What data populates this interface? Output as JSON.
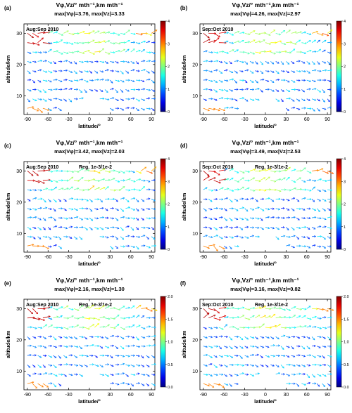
{
  "figure": {
    "panels": [
      {
        "letter": "(a)",
        "period": "Aug:Sep 2010",
        "reg": "",
        "vmax": 3.76,
        "zmax": 3.33,
        "cmax": 4,
        "cticks": [
          "0",
          "1",
          "2",
          "3",
          "4"
        ],
        "title1": "Vφ,Vz/° mth⁻¹,km mth⁻¹",
        "title2": "max|Vφ|=3.76, max|Vz|=3.33"
      },
      {
        "letter": "(b)",
        "period": "Sep:Oct 2010",
        "reg": "",
        "vmax": 4.26,
        "zmax": 2.97,
        "cmax": 4,
        "cticks": [
          "0",
          "1",
          "2",
          "3",
          "4"
        ],
        "title1": "Vφ,Vz/° mth⁻¹,km mth⁻¹",
        "title2": "max|Vφ|=4.26, max|Vz|=2.97"
      },
      {
        "letter": "(c)",
        "period": "Aug:Sep 2010",
        "reg": "Reg. 1e-3/1e-2",
        "vmax": 3.42,
        "zmax": 2.03,
        "cmax": 4,
        "cticks": [
          "0",
          "1",
          "2",
          "3",
          "4"
        ],
        "title1": "Vφ,Vz/° mth⁻¹,km mth⁻¹",
        "title2": "max|Vφ|=3.42, max|Vz|=2.03"
      },
      {
        "letter": "(d)",
        "period": "Sep:Oct 2010",
        "reg": "Reg. 1e-3/1e-2",
        "vmax": 3.49,
        "zmax": 2.53,
        "cmax": 4,
        "cticks": [
          "0",
          "1",
          "2",
          "3",
          "4"
        ],
        "title1": "Vφ,Vz/° mth⁻¹,km mth⁻¹",
        "title2": "max|Vφ|=3.49, max|Vz|=2.53"
      },
      {
        "letter": "(e)",
        "period": "Aug:Sep 2010",
        "reg": "Reg. 1e-3/1e-2",
        "vmax": 2.16,
        "zmax": 1.3,
        "cmax": 2,
        "cticks": [
          "0.0",
          "0.5",
          "1.0",
          "1.5",
          "2.0"
        ],
        "title1": "Vφ,Vz/° mth⁻¹,km mth⁻¹",
        "title2": "max|Vφ|=2.16, max|Vz|=1.30"
      },
      {
        "letter": "(f)",
        "period": "Sep:Oct 2010",
        "reg": "Reg. 1e-3/1e-2",
        "vmax": 3.16,
        "zmax": 0.82,
        "cmax": 2,
        "cticks": [
          "0.0",
          "0.5",
          "1.0",
          "1.5",
          "2.0"
        ],
        "title1": "Vφ,Vz/° mth⁻¹,km mth⁻¹",
        "title2": "max|Vφ|=3.16, max|Vz|=0.82"
      }
    ],
    "xlabel": "latitude/°",
    "ylabel": "altitude/km",
    "xticks": [
      "-90",
      "-60",
      "-30",
      "0",
      "30",
      "60",
      "90"
    ],
    "yticks": [
      "10",
      "20",
      "30"
    ]
  },
  "chart_data": [
    {
      "type": "quiver",
      "panel": "(a)",
      "x": [
        -90,
        90
      ],
      "y_ticks": [
        10,
        20,
        30
      ],
      "xlim": [
        -95,
        95
      ],
      "ylim": [
        4,
        33
      ],
      "colorbar": [
        0,
        4
      ]
    },
    {
      "type": "quiver",
      "panel": "(b)",
      "x": [
        -90,
        90
      ],
      "y_ticks": [
        10,
        20,
        30
      ],
      "xlim": [
        -95,
        95
      ],
      "ylim": [
        4,
        33
      ],
      "colorbar": [
        0,
        4
      ]
    },
    {
      "type": "quiver",
      "panel": "(c)",
      "x": [
        -90,
        90
      ],
      "y_ticks": [
        10,
        20,
        30
      ],
      "xlim": [
        -95,
        95
      ],
      "ylim": [
        4,
        33
      ],
      "colorbar": [
        0,
        4
      ]
    },
    {
      "type": "quiver",
      "panel": "(d)",
      "x": [
        -90,
        90
      ],
      "y_ticks": [
        10,
        20,
        30
      ],
      "xlim": [
        -95,
        95
      ],
      "ylim": [
        4,
        33
      ],
      "colorbar": [
        0,
        4
      ]
    },
    {
      "type": "quiver",
      "panel": "(e)",
      "x": [
        -90,
        90
      ],
      "y_ticks": [
        10,
        20,
        30
      ],
      "xlim": [
        -95,
        95
      ],
      "ylim": [
        4,
        33
      ],
      "colorbar": [
        0,
        2
      ]
    },
    {
      "type": "quiver",
      "panel": "(f)",
      "x": [
        -90,
        90
      ],
      "y_ticks": [
        10,
        20,
        30
      ],
      "xlim": [
        -95,
        95
      ],
      "ylim": [
        4,
        33
      ],
      "colorbar": [
        0,
        2
      ]
    }
  ]
}
